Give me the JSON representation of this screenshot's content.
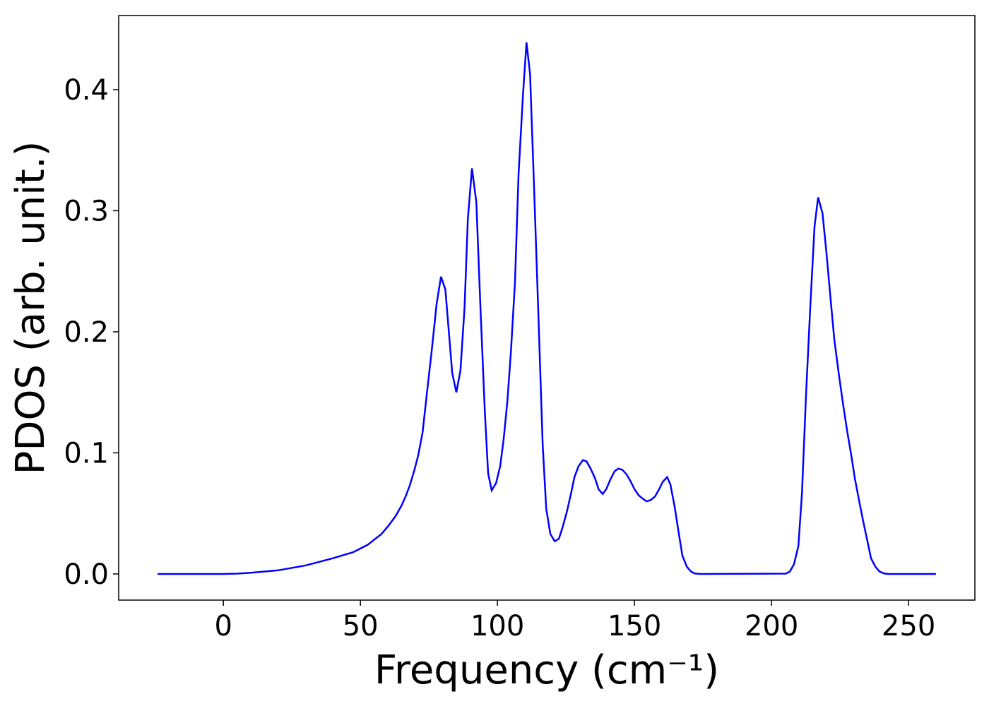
{
  "chart_data": {
    "type": "line",
    "xlabel": "Frequency (cm⁻¹)",
    "ylabel": "PDOS (arb. unit.)",
    "xlim": [
      -38.2,
      274.2
    ],
    "ylim": [
      -0.0216,
      0.4612
    ],
    "xticks": [
      0,
      50,
      100,
      150,
      200,
      250
    ],
    "yticks": [
      {
        "value": 0,
        "label": "0.0"
      },
      0.1,
      0.2,
      0.3,
      0.4
    ],
    "series": [
      {
        "color": "#0000ff",
        "x": [
          -24,
          0,
          5,
          10,
          20,
          30,
          40,
          47.4,
          52.6,
          57.7,
          60.3,
          62.9,
          64.9,
          66.5,
          68,
          69.6,
          71.1,
          72.7,
          74.2,
          76,
          77.8,
          79.4,
          81,
          83.5,
          85,
          86.5,
          88,
          89.2,
          90.7,
          92.3,
          93.8,
          95.4,
          96.6,
          97.9,
          99.5,
          101,
          102.3,
          103.6,
          104.9,
          106.4,
          107.7,
          109.3,
          110.6,
          111.9,
          113.4,
          115,
          116.5,
          117.8,
          119.3,
          120.9,
          122.4,
          123.7,
          125.3,
          126.8,
          128.1,
          129.6,
          131.2,
          132.5,
          134,
          135.6,
          136.9,
          138.4,
          139.7,
          141.2,
          142.8,
          144.1,
          145.6,
          147.2,
          148.7,
          150,
          151.5,
          153.1,
          154.4,
          155.9,
          157.5,
          159,
          160.3,
          161.9,
          163.1,
          164.7,
          166.2,
          167.5,
          169.1,
          170.6,
          171.9,
          173.7,
          205.2,
          206.7,
          208.2,
          209.8,
          211.1,
          212.6,
          214.2,
          215.7,
          217,
          218.6,
          220.1,
          221.6,
          222.9,
          224.5,
          226,
          227.6,
          229.1,
          230.4,
          232,
          233.5,
          235.1,
          236.3,
          237.9,
          239.4,
          241,
          242.5,
          260
        ],
        "values": [
          0,
          0,
          0.0003,
          0.001,
          0.003,
          0.007,
          0.013,
          0.018,
          0.024,
          0.033,
          0.04,
          0.048,
          0.056,
          0.064,
          0.073,
          0.085,
          0.098,
          0.117,
          0.148,
          0.184,
          0.223,
          0.2455,
          0.235,
          0.166,
          0.15,
          0.168,
          0.22,
          0.293,
          0.335,
          0.307,
          0.22,
          0.134,
          0.083,
          0.069,
          0.075,
          0.089,
          0.112,
          0.142,
          0.183,
          0.241,
          0.33,
          0.395,
          0.439,
          0.413,
          0.317,
          0.21,
          0.107,
          0.054,
          0.033,
          0.027,
          0.029,
          0.038,
          0.051,
          0.066,
          0.08,
          0.089,
          0.094,
          0.093,
          0.087,
          0.079,
          0.07,
          0.066,
          0.07,
          0.078,
          0.085,
          0.087,
          0.086,
          0.082,
          0.076,
          0.07,
          0.065,
          0.062,
          0.06,
          0.061,
          0.064,
          0.07,
          0.076,
          0.08,
          0.074,
          0.055,
          0.033,
          0.015,
          0.006,
          0.002,
          0.0005,
          0,
          0.0003,
          0.002,
          0.008,
          0.023,
          0.066,
          0.148,
          0.223,
          0.287,
          0.311,
          0.298,
          0.264,
          0.226,
          0.194,
          0.166,
          0.142,
          0.118,
          0.098,
          0.079,
          0.06,
          0.043,
          0.026,
          0.013,
          0.006,
          0.002,
          0.0005,
          0,
          0
        ]
      }
    ]
  }
}
